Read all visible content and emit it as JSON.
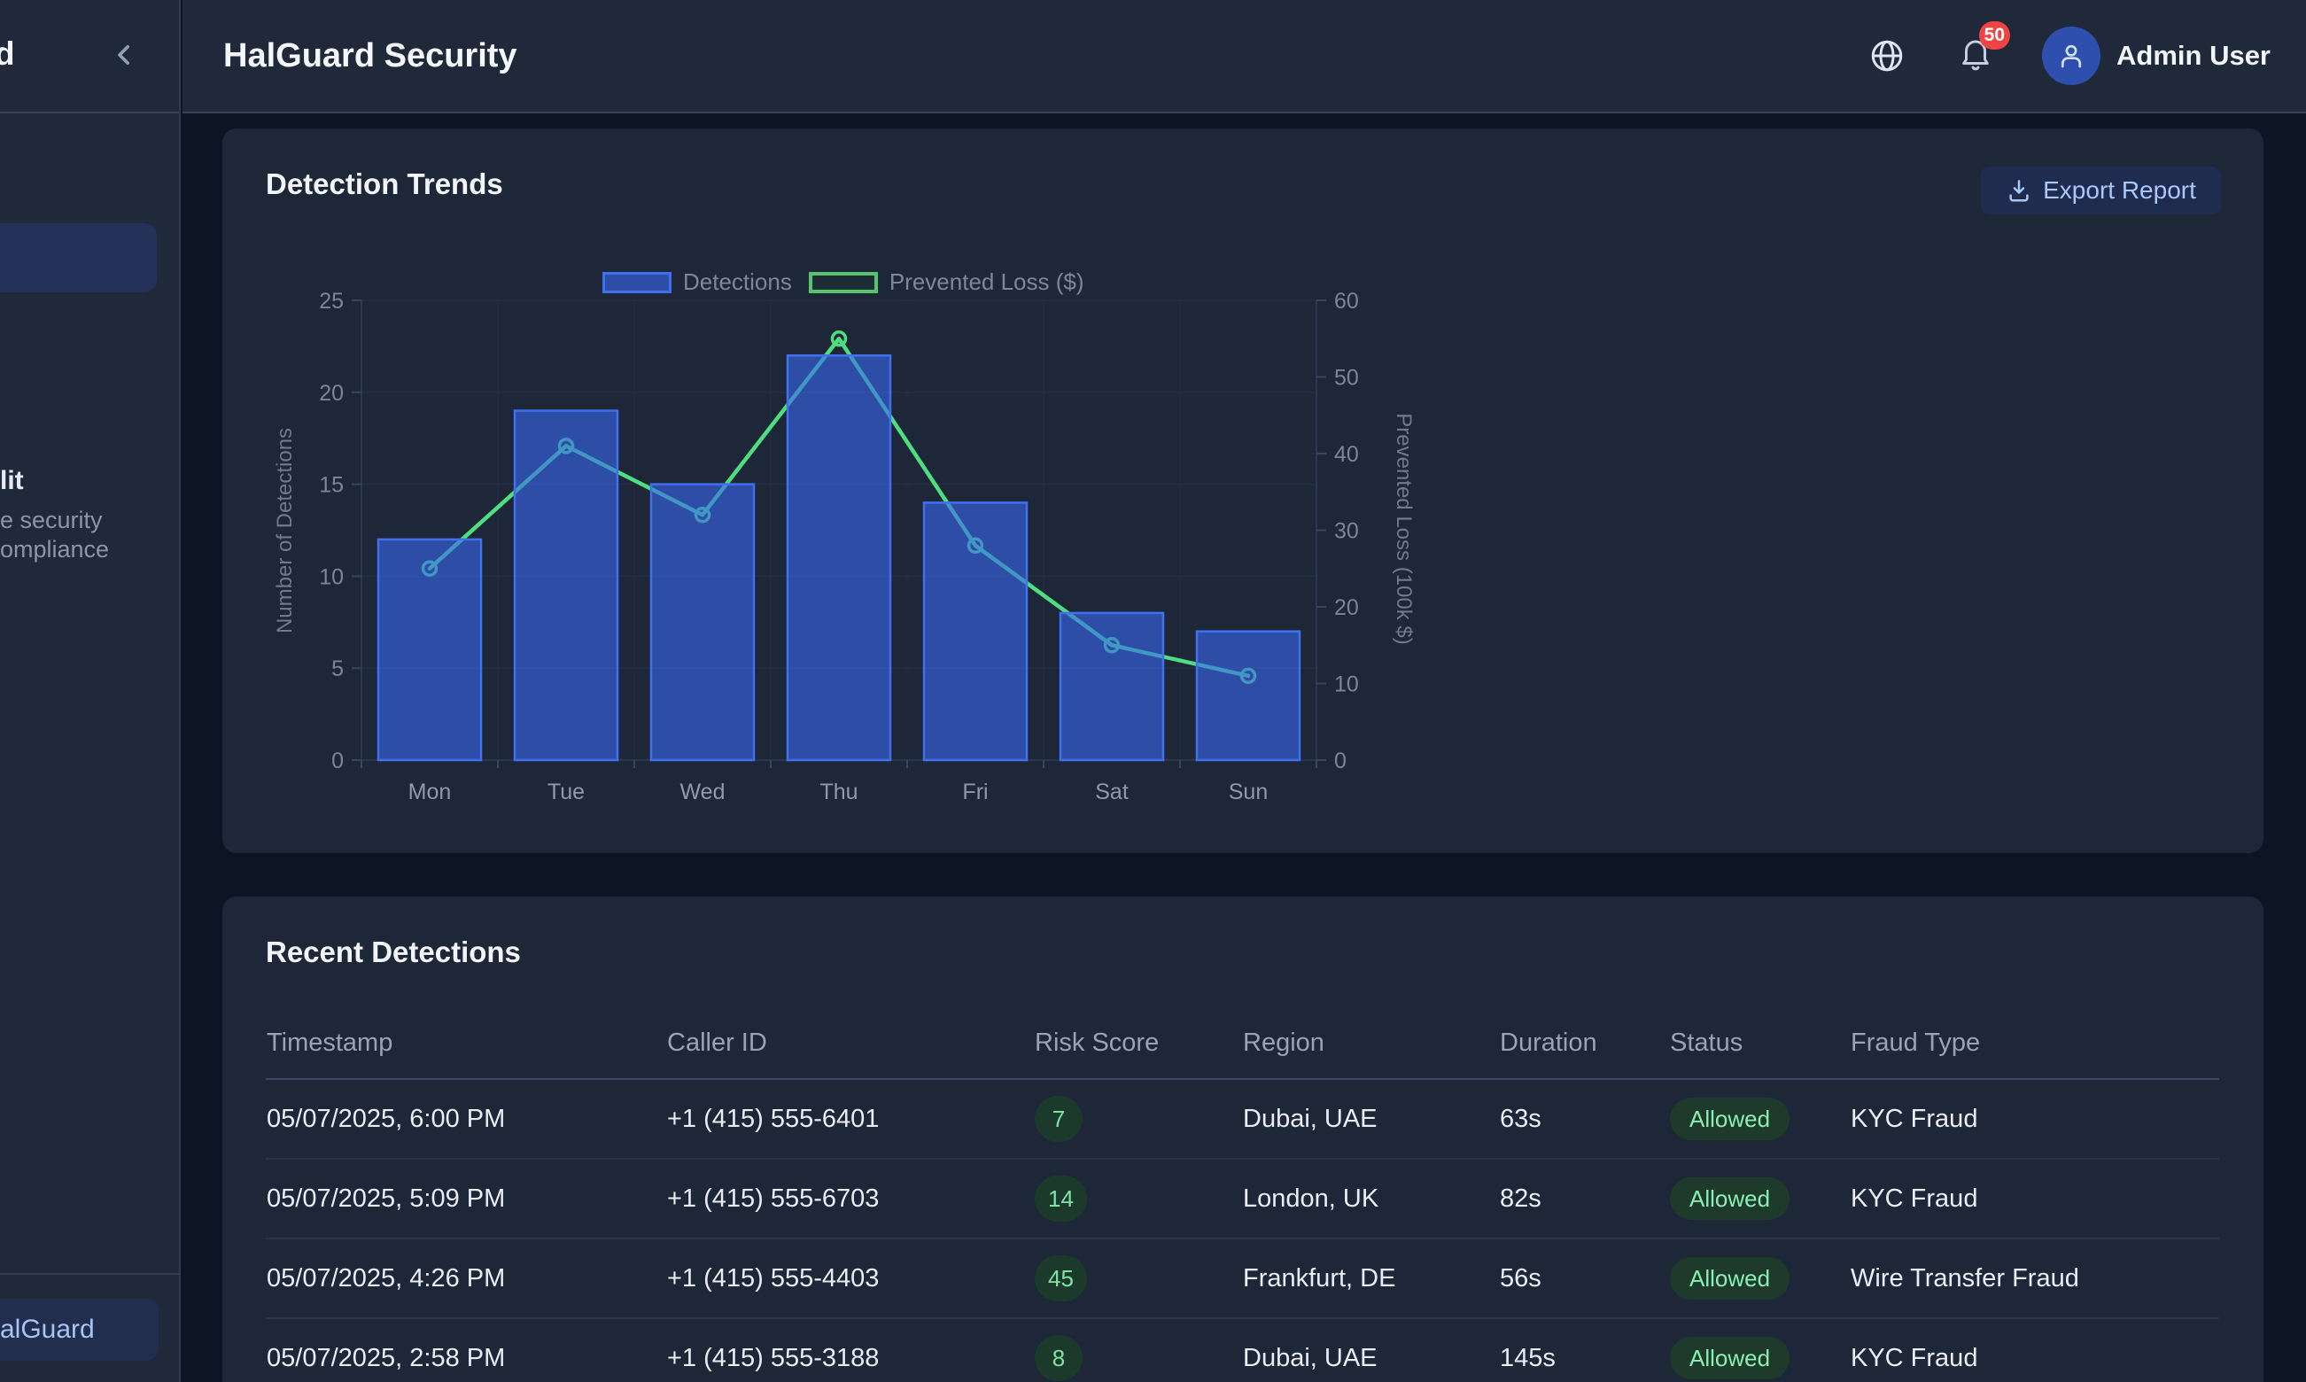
{
  "header": {
    "title": "HalGuard Security",
    "logo_fragment": "d",
    "collapse_icon": "chevron-left-icon",
    "globe_icon": "globe-icon",
    "bell_icon": "bell-icon",
    "notification_count": "50",
    "avatar_icon": "user-icon",
    "user_name": "Admin User"
  },
  "sidebar": {
    "item_label_fragment": "lit",
    "item_desc_fragment_1": "e security",
    "item_desc_fragment_2": "ompliance",
    "footer_button_fragment": "alGuard"
  },
  "detection_trends": {
    "title": "Detection Trends",
    "export_button": "Export Report",
    "export_icon": "download-icon",
    "legend": [
      "Detections",
      "Prevented Loss ($)"
    ]
  },
  "chart_data": {
    "type": "bar+line",
    "title": "Detection Trends",
    "categories": [
      "Mon",
      "Tue",
      "Wed",
      "Thu",
      "Fri",
      "Sat",
      "Sun"
    ],
    "series": [
      {
        "name": "Detections",
        "type": "bar",
        "axis": "left",
        "values": [
          12,
          19,
          15,
          22,
          14,
          8,
          7
        ],
        "fill": "rgba(58,103,242,0.6)",
        "border": "#4170ee"
      },
      {
        "name": "Prevented Loss ($)",
        "type": "line",
        "axis": "right",
        "values": [
          25,
          41,
          32,
          55,
          28,
          15,
          11
        ],
        "color": "#4dde80"
      }
    ],
    "left_axis": {
      "label": "Number of Detections",
      "min": 0,
      "max": 25,
      "ticks": [
        0,
        5,
        10,
        15,
        20,
        25
      ]
    },
    "right_axis": {
      "label": "Prevented Loss (100k $)",
      "min": 0,
      "max": 60,
      "ticks": [
        0,
        10,
        20,
        30,
        40,
        50,
        60
      ]
    },
    "grid": true,
    "legend_position": "top"
  },
  "recent_detections": {
    "title": "Recent Detections",
    "columns": [
      "Timestamp",
      "Caller ID",
      "Risk Score",
      "Region",
      "Duration",
      "Status",
      "Fraud Type"
    ],
    "rows": [
      {
        "timestamp": "05/07/2025, 6:00 PM",
        "caller_id": "+1 (415) 555-6401",
        "risk_score": "7",
        "region": "Dubai, UAE",
        "duration": "63s",
        "status": "Allowed",
        "fraud_type": "KYC Fraud"
      },
      {
        "timestamp": "05/07/2025, 5:09 PM",
        "caller_id": "+1 (415) 555-6703",
        "risk_score": "14",
        "region": "London, UK",
        "duration": "82s",
        "status": "Allowed",
        "fraud_type": "KYC Fraud"
      },
      {
        "timestamp": "05/07/2025, 4:26 PM",
        "caller_id": "+1 (415) 555-4403",
        "risk_score": "45",
        "region": "Frankfurt, DE",
        "duration": "56s",
        "status": "Allowed",
        "fraud_type": "Wire Transfer Fraud"
      },
      {
        "timestamp": "05/07/2025, 2:58 PM",
        "caller_id": "+1 (415) 555-3188",
        "risk_score": "8",
        "region": "Dubai, UAE",
        "duration": "145s",
        "status": "Allowed",
        "fraud_type": "KYC Fraud"
      }
    ]
  },
  "colors": {
    "page_bg": "#0d1424",
    "panel_bg": "#1f2939",
    "card_bg": "#1d2737",
    "bar_fill": "rgba(58,103,242,0.6)",
    "bar_border": "#4170ee",
    "line_green": "#4dde80",
    "risk_pill_bg": "#1c3a2b",
    "risk_pill_text": "#7fe3a6",
    "status_badge_bg": "#1e3a2b",
    "status_badge_text": "#8beeb4",
    "notification_red": "#ef4444",
    "export_btn_bg": "#202c4f",
    "export_btn_text": "#a9c7f8",
    "avatar_bg": "#2e4fae"
  }
}
